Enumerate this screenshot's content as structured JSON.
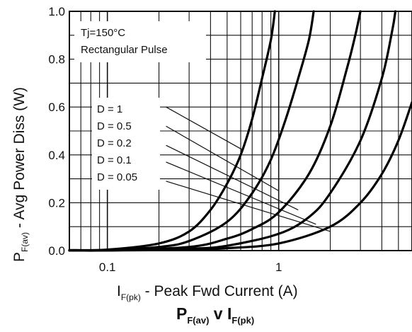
{
  "chart_data": {
    "type": "line",
    "title": {
      "main": "P",
      "sub": "F(av)",
      "mid": " v I",
      "sub2": "F(pk)"
    },
    "xlabel": {
      "pre": "I",
      "sub": "F(pk)",
      "post": " - Peak Fwd Current (A)"
    },
    "ylabel": {
      "pre": "P",
      "sub": "F(av)",
      "post": " - Avg Power Diss (W)"
    },
    "x_scale": "log",
    "xlim": [
      0.06,
      6
    ],
    "ylim": [
      0,
      1.0
    ],
    "x_ticks": [
      {
        "value": 0.1,
        "label": "0.1"
      },
      {
        "value": 1,
        "label": "1"
      }
    ],
    "y_ticks": [
      {
        "value": 0.0,
        "label": "0.0"
      },
      {
        "value": 0.2,
        "label": "0.2"
      },
      {
        "value": 0.4,
        "label": "0.4"
      },
      {
        "value": 0.6,
        "label": "0.6"
      },
      {
        "value": 0.8,
        "label": "0.8"
      },
      {
        "value": 1.0,
        "label": "1.0"
      }
    ],
    "grid": true,
    "annotations": [
      "Tj=150°C",
      "Rectangular Pulse"
    ],
    "legend_entries": [
      "D = 1",
      "D = 0.5",
      "D = 0.2",
      "D = 0.1",
      "D = 0.05"
    ],
    "series": [
      {
        "name": "D = 1",
        "points": [
          [
            0.06,
            0.002
          ],
          [
            0.1,
            0.004
          ],
          [
            0.2,
            0.03
          ],
          [
            0.3,
            0.08
          ],
          [
            0.4,
            0.17
          ],
          [
            0.5,
            0.28
          ],
          [
            0.6,
            0.4
          ],
          [
            0.7,
            0.55
          ],
          [
            0.8,
            0.72
          ],
          [
            0.9,
            0.88
          ],
          [
            0.95,
            1.0
          ]
        ]
      },
      {
        "name": "D = 0.5",
        "points": [
          [
            0.06,
            0.001
          ],
          [
            0.1,
            0.002
          ],
          [
            0.2,
            0.015
          ],
          [
            0.3,
            0.04
          ],
          [
            0.5,
            0.12
          ],
          [
            0.7,
            0.24
          ],
          [
            0.9,
            0.38
          ],
          [
            1.1,
            0.55
          ],
          [
            1.3,
            0.72
          ],
          [
            1.5,
            0.88
          ],
          [
            1.6,
            1.0
          ]
        ]
      },
      {
        "name": "D = 0.2",
        "points": [
          [
            0.06,
            0.001
          ],
          [
            0.1,
            0.001
          ],
          [
            0.3,
            0.015
          ],
          [
            0.5,
            0.05
          ],
          [
            0.7,
            0.09
          ],
          [
            1.0,
            0.16
          ],
          [
            1.5,
            0.32
          ],
          [
            2.0,
            0.52
          ],
          [
            2.5,
            0.76
          ],
          [
            2.8,
            0.9
          ],
          [
            3.0,
            1.0
          ]
        ]
      },
      {
        "name": "D = 0.1",
        "points": [
          [
            0.06,
            0.0005
          ],
          [
            0.1,
            0.001
          ],
          [
            0.3,
            0.008
          ],
          [
            0.5,
            0.02
          ],
          [
            1.0,
            0.07
          ],
          [
            1.5,
            0.14
          ],
          [
            2.0,
            0.24
          ],
          [
            3.0,
            0.46
          ],
          [
            4.0,
            0.72
          ],
          [
            4.6,
            0.92
          ],
          [
            4.8,
            1.0
          ]
        ]
      },
      {
        "name": "D = 0.05",
        "points": [
          [
            0.06,
            0.0002
          ],
          [
            0.1,
            0.0005
          ],
          [
            0.3,
            0.004
          ],
          [
            0.5,
            0.01
          ],
          [
            1.0,
            0.03
          ],
          [
            2.0,
            0.1
          ],
          [
            3.0,
            0.2
          ],
          [
            4.0,
            0.32
          ],
          [
            5.0,
            0.46
          ],
          [
            6.0,
            0.62
          ]
        ]
      }
    ],
    "duty_markers": [
      {
        "name": "D = 1",
        "points": [
          [
            0.22,
            0.6
          ],
          [
            0.62,
            0.42
          ]
        ]
      },
      {
        "name": "D = 0.5",
        "points": [
          [
            0.22,
            0.52
          ],
          [
            1.0,
            0.25
          ]
        ]
      },
      {
        "name": "D = 0.2",
        "points": [
          [
            0.22,
            0.44
          ],
          [
            1.3,
            0.17
          ]
        ]
      },
      {
        "name": "D = 0.1",
        "points": [
          [
            0.22,
            0.37
          ],
          [
            1.65,
            0.11
          ]
        ]
      },
      {
        "name": "D = 0.05",
        "points": [
          [
            0.22,
            0.29
          ],
          [
            2.0,
            0.08
          ]
        ]
      }
    ]
  }
}
